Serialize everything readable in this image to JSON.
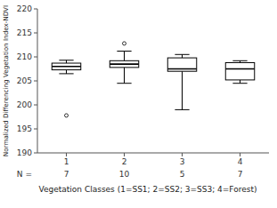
{
  "chart_data": {
    "type": "box",
    "ylabel": "Normalized Differencing Vegetation Index-NDVI",
    "xlabel": "Vegetation Classes (1=SS1; 2=SS2; 3=SS3; 4=Forest)",
    "categories": [
      1,
      2,
      3,
      4
    ],
    "ylim": [
      190,
      220
    ],
    "yticks": [
      190,
      195,
      200,
      205,
      210,
      215,
      220
    ],
    "boxes": [
      {
        "low": 206.5,
        "q1": 207.3,
        "median": 208.0,
        "q3": 208.7,
        "high": 209.3,
        "outliers": [
          197.8
        ]
      },
      {
        "low": 204.5,
        "q1": 207.8,
        "median": 208.5,
        "q3": 209.2,
        "high": 211.2,
        "outliers": [
          212.8
        ]
      },
      {
        "low": 199.0,
        "q1": 207.0,
        "median": 207.5,
        "q3": 209.8,
        "high": 210.5,
        "outliers": []
      },
      {
        "low": 204.5,
        "q1": 205.2,
        "median": 207.5,
        "q3": 208.8,
        "high": 209.2,
        "outliers": []
      }
    ],
    "n_label": "N =",
    "n": [
      7,
      10,
      5,
      7
    ],
    "color": "#000000",
    "grid": false
  }
}
